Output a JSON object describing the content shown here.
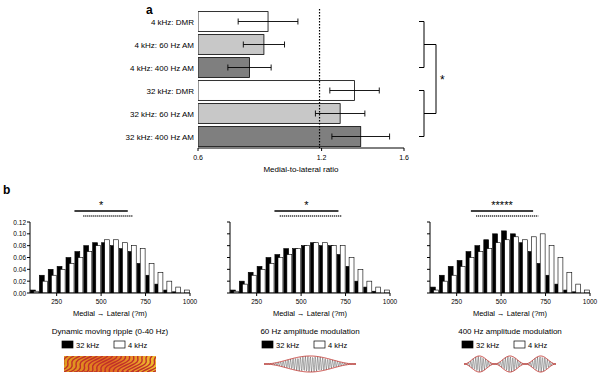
{
  "chart_data": [
    {
      "type": "bar",
      "orientation": "horizontal",
      "panel_label": "a",
      "categories": [
        "4 kHz: DMR",
        "4 kHz: 60 Hz AM",
        "4 kHz: 400 Hz AM",
        "32 kHz: DMR",
        "32 kHz: 60 Hz AM",
        "32 kHz: 400 Hz AM"
      ],
      "values": [
        0.94,
        0.92,
        0.85,
        1.36,
        1.29,
        1.39
      ],
      "errors": [
        0.145,
        0.1,
        0.105,
        0.12,
        0.12,
        0.14
      ],
      "colors": [
        "#ffffff",
        "#c8c8c8",
        "#7f7f7f",
        "#ffffff",
        "#c8c8c8",
        "#7f7f7f"
      ],
      "xlabel": "Medial-to-lateral ratio",
      "xlim": [
        0.6,
        1.6
      ],
      "xticks": [
        0.6,
        1.2,
        1.6
      ],
      "reference_line": 1.19,
      "annotation": "*"
    },
    {
      "type": "histogram",
      "panel_label": "b",
      "title": "Dynamic moving ripple (0-40 Hz)",
      "xlabel": "Medial → Lateral (?m)",
      "bins": [
        100,
        150,
        200,
        250,
        300,
        350,
        400,
        450,
        500,
        550,
        600,
        650,
        700,
        750,
        800,
        850,
        900,
        950,
        1000
      ],
      "series": [
        {
          "name": "32 kHz",
          "color": "#000000",
          "values": [
            0.005,
            0.03,
            0.04,
            0.045,
            0.06,
            0.07,
            0.08,
            0.085,
            0.085,
            0.08,
            0.075,
            0.07,
            0.05,
            0.03,
            0.015,
            0.005,
            0.002,
            0.0
          ]
        },
        {
          "name": "4 kHz",
          "color": "#ffffff",
          "values": [
            0.003,
            0.02,
            0.03,
            0.04,
            0.05,
            0.06,
            0.07,
            0.08,
            0.09,
            0.09,
            0.085,
            0.08,
            0.075,
            0.05,
            0.035,
            0.02,
            0.01,
            0.005
          ]
        }
      ],
      "xlim": [
        100,
        1000
      ],
      "xticks": [
        250,
        500,
        750,
        1000
      ],
      "ylim": [
        0,
        0.12
      ],
      "yticks": [
        {
          "value": 0,
          "label": "0.00"
        },
        0.02,
        0.04,
        0.06,
        0.08,
        {
          "value": 0.1,
          "label": "0.10"
        },
        0.12
      ],
      "legend": "bottom",
      "significance": {
        "text": "*",
        "solid": [
          350,
          650
        ],
        "dotted": [
          400,
          680
        ]
      }
    },
    {
      "type": "histogram",
      "title": "60 Hz amplitude modulation",
      "xlabel": "Medial → Lateral (?m)",
      "bins": [
        100,
        150,
        200,
        250,
        300,
        350,
        400,
        450,
        500,
        550,
        600,
        650,
        700,
        750,
        800,
        850,
        900,
        950,
        1000
      ],
      "series": [
        {
          "name": "32 kHz",
          "color": "#000000",
          "values": [
            0.005,
            0.02,
            0.035,
            0.045,
            0.06,
            0.065,
            0.075,
            0.075,
            0.08,
            0.085,
            0.08,
            0.08,
            0.065,
            0.045,
            0.02,
            0.01,
            0.003,
            0.0
          ]
        },
        {
          "name": "4 kHz",
          "color": "#ffffff",
          "values": [
            0.003,
            0.015,
            0.03,
            0.04,
            0.05,
            0.06,
            0.065,
            0.075,
            0.08,
            0.085,
            0.085,
            0.08,
            0.08,
            0.06,
            0.04,
            0.02,
            0.01,
            0.005
          ]
        }
      ],
      "xlim": [
        100,
        1000
      ],
      "xticks": [
        250,
        500,
        750,
        1000
      ],
      "ylim": [
        0,
        0.12
      ],
      "yticks": [
        {
          "value": 0,
          "label": "0.00"
        },
        0.02,
        0.04,
        0.06,
        0.08,
        {
          "value": 0.1,
          "label": "0.10"
        },
        0.12
      ],
      "tick_labels": "x",
      "legend": "bottom",
      "significance": {
        "text": "*",
        "solid": [
          350,
          710
        ],
        "dotted": [
          380,
          730
        ]
      }
    },
    {
      "type": "histogram",
      "title": "400 Hz amplitude modulation",
      "xlabel": "Medial → Lateral (?m)",
      "bins": [
        100,
        150,
        200,
        250,
        300,
        350,
        400,
        450,
        500,
        550,
        600,
        650,
        700,
        750,
        800,
        850,
        900,
        950,
        1000
      ],
      "series": [
        {
          "name": "32 kHz",
          "color": "#000000",
          "values": [
            0.01,
            0.03,
            0.045,
            0.055,
            0.07,
            0.08,
            0.09,
            0.1,
            0.105,
            0.1,
            0.085,
            0.07,
            0.05,
            0.03,
            0.015,
            0.005,
            0.002,
            0.0
          ]
        },
        {
          "name": "4 kHz",
          "color": "#ffffff",
          "values": [
            0.005,
            0.02,
            0.03,
            0.045,
            0.06,
            0.07,
            0.075,
            0.085,
            0.09,
            0.095,
            0.09,
            0.095,
            0.1,
            0.08,
            0.06,
            0.035,
            0.015,
            0.005
          ]
        }
      ],
      "xlim": [
        100,
        1000
      ],
      "xticks": [
        250,
        500,
        750,
        1000
      ],
      "ylim": [
        0,
        0.12
      ],
      "yticks": [
        {
          "value": 0,
          "label": "0.00"
        },
        0.02,
        0.04,
        0.06,
        0.08,
        {
          "value": 0.1,
          "label": "0.10"
        },
        0.12
      ],
      "tick_labels": "x",
      "legend": "bottom",
      "significance": {
        "text": "*****",
        "solid": [
          330,
          680
        ],
        "dotted": [
          360,
          710
        ]
      }
    }
  ]
}
